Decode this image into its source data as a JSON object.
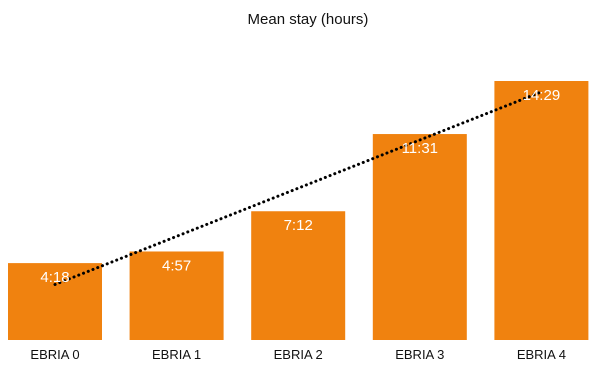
{
  "chart_data": {
    "type": "bar",
    "title": "Mean stay (hours)",
    "categories": [
      "EBRIA 0",
      "EBRIA 1",
      "EBRIA 2",
      "EBRIA 3",
      "EBRIA 4"
    ],
    "values": [
      4.3,
      4.95,
      7.2,
      11.517,
      14.483
    ],
    "value_labels": [
      "4:18",
      "4:57",
      "7:12",
      "11:31",
      "14:29"
    ],
    "trendline": {
      "style": "dotted",
      "color": "#000000",
      "type": "linear"
    },
    "ylim": [
      0,
      17
    ],
    "grid": false,
    "legend": "none",
    "bar_color": "#F0820F",
    "label_color": "#FFFFFF"
  }
}
